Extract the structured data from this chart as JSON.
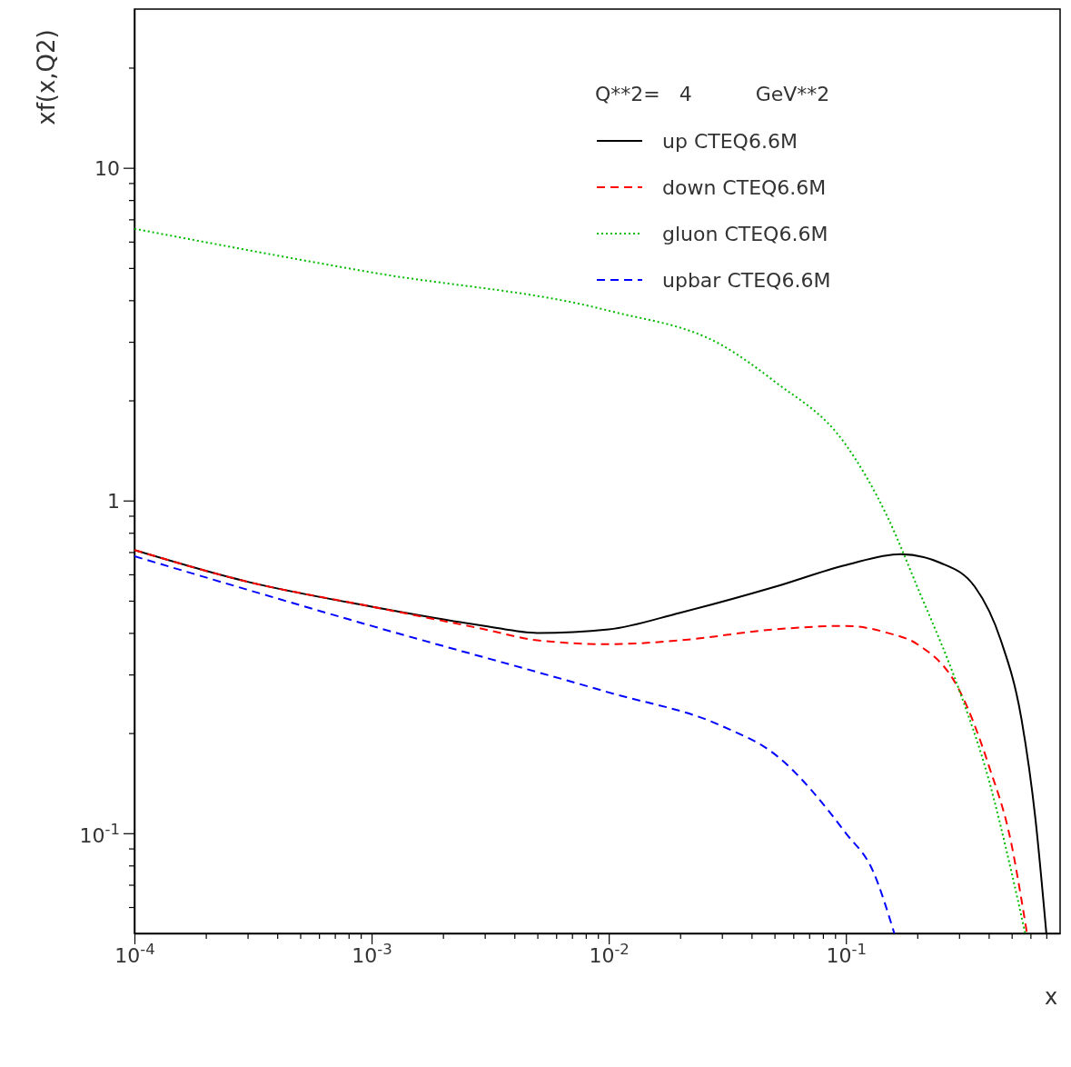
{
  "chart_data": {
    "type": "line",
    "xlabel": "x",
    "ylabel": "xf(x,Q2)",
    "legend_title": "Q**2=   4          GeV**2",
    "legend": "top right",
    "log": "xy",
    "grid": false,
    "xlim": [
      0.0001,
      0.8
    ],
    "ylim": [
      0.05,
      30
    ],
    "xticks": [
      {
        "value": 0.0001,
        "label": "10$^{-4}$"
      },
      {
        "value": 0.0002,
        "label": null
      },
      {
        "value": 0.0003,
        "label": null
      },
      {
        "value": 0.0004,
        "label": null
      },
      {
        "value": 0.0005,
        "label": null
      },
      {
        "value": 0.0006,
        "label": null
      },
      {
        "value": 0.0007,
        "label": null
      },
      {
        "value": 0.0008,
        "label": null
      },
      {
        "value": 0.0009,
        "label": null
      },
      {
        "value": 0.001,
        "label": "10$^{-3}$"
      },
      {
        "value": 0.002,
        "label": null
      },
      {
        "value": 0.003,
        "label": null
      },
      {
        "value": 0.004,
        "label": null
      },
      {
        "value": 0.005,
        "label": null
      },
      {
        "value": 0.006,
        "label": null
      },
      {
        "value": 0.007,
        "label": null
      },
      {
        "value": 0.008,
        "label": null
      },
      {
        "value": 0.009,
        "label": null
      },
      {
        "value": 0.01,
        "label": "10$^{-2}$"
      },
      {
        "value": 0.02,
        "label": null
      },
      {
        "value": 0.03,
        "label": null
      },
      {
        "value": 0.04,
        "label": null
      },
      {
        "value": 0.05,
        "label": null
      },
      {
        "value": 0.06,
        "label": null
      },
      {
        "value": 0.07,
        "label": null
      },
      {
        "value": 0.08,
        "label": null
      },
      {
        "value": 0.09,
        "label": null
      },
      {
        "value": 0.1,
        "label": "10$^{-1}$"
      },
      {
        "value": 0.2,
        "label": null
      },
      {
        "value": 0.3,
        "label": null
      },
      {
        "value": 0.4,
        "label": null
      },
      {
        "value": 0.5,
        "label": null
      },
      {
        "value": 0.6,
        "label": null
      },
      {
        "value": 0.7,
        "label": null
      }
    ],
    "yticks": [
      {
        "value": 0.06,
        "label": null
      },
      {
        "value": 0.07,
        "label": null
      },
      {
        "value": 0.08,
        "label": null
      },
      {
        "value": 0.09,
        "label": null
      },
      {
        "value": 0.1,
        "label": "10$^{-1}$"
      },
      {
        "value": 0.2,
        "label": null
      },
      {
        "value": 0.3,
        "label": null
      },
      {
        "value": 0.4,
        "label": null
      },
      {
        "value": 0.5,
        "label": null
      },
      {
        "value": 0.6,
        "label": null
      },
      {
        "value": 0.7,
        "label": null
      },
      {
        "value": 0.8,
        "label": null
      },
      {
        "value": 0.9,
        "label": null
      },
      1,
      {
        "value": 2,
        "label": null
      },
      {
        "value": 3,
        "label": null
      },
      {
        "value": 4,
        "label": null
      },
      {
        "value": 5,
        "label": null
      },
      {
        "value": 6,
        "label": null
      },
      {
        "value": 7,
        "label": null
      },
      {
        "value": 8,
        "label": null
      },
      {
        "value": 9,
        "label": null
      },
      10,
      {
        "value": 20,
        "label": null
      }
    ],
    "series": [
      {
        "name": "up CTEQ6.6M",
        "color": "#000000",
        "line_style": "solid",
        "x": [
          0.0001,
          0.0003,
          0.001,
          0.003,
          0.005,
          0.01,
          0.02,
          0.05,
          0.1,
          0.17,
          0.25,
          0.35,
          0.45,
          0.55,
          0.63,
          0.7
        ],
        "values": [
          0.71,
          0.57,
          0.48,
          0.42,
          0.4,
          0.41,
          0.46,
          0.55,
          0.64,
          0.69,
          0.65,
          0.55,
          0.38,
          0.22,
          0.11,
          0.05
        ]
      },
      {
        "name": "down CTEQ6.6M",
        "color": "#ff0000",
        "line_style": "dashed",
        "x": [
          0.0001,
          0.0003,
          0.001,
          0.003,
          0.005,
          0.01,
          0.02,
          0.05,
          0.1,
          0.15,
          0.2,
          0.3,
          0.4,
          0.5,
          0.55,
          0.58
        ],
        "values": [
          0.71,
          0.57,
          0.48,
          0.41,
          0.38,
          0.37,
          0.38,
          0.41,
          0.42,
          0.4,
          0.37,
          0.27,
          0.16,
          0.092,
          0.063,
          0.05
        ]
      },
      {
        "name": "gluon CTEQ6.6M",
        "color": "#00bb00",
        "line_style": "dotted",
        "x": [
          0.0001,
          0.001,
          0.01,
          0.03,
          0.05,
          0.1,
          0.15,
          0.2,
          0.3,
          0.4,
          0.5,
          0.57
        ],
        "values": [
          6.56,
          4.85,
          3.72,
          2.93,
          2.28,
          1.47,
          0.89,
          0.55,
          0.27,
          0.145,
          0.076,
          0.05
        ]
      },
      {
        "name": "upbar CTEQ6.6M",
        "color": "#0000ff",
        "line_style": "dashed",
        "x": [
          0.0001,
          0.001,
          0.01,
          0.03,
          0.05,
          0.1,
          0.13,
          0.16
        ],
        "values": [
          0.68,
          0.42,
          0.265,
          0.21,
          0.173,
          0.1,
          0.077,
          0.05
        ]
      }
    ]
  }
}
